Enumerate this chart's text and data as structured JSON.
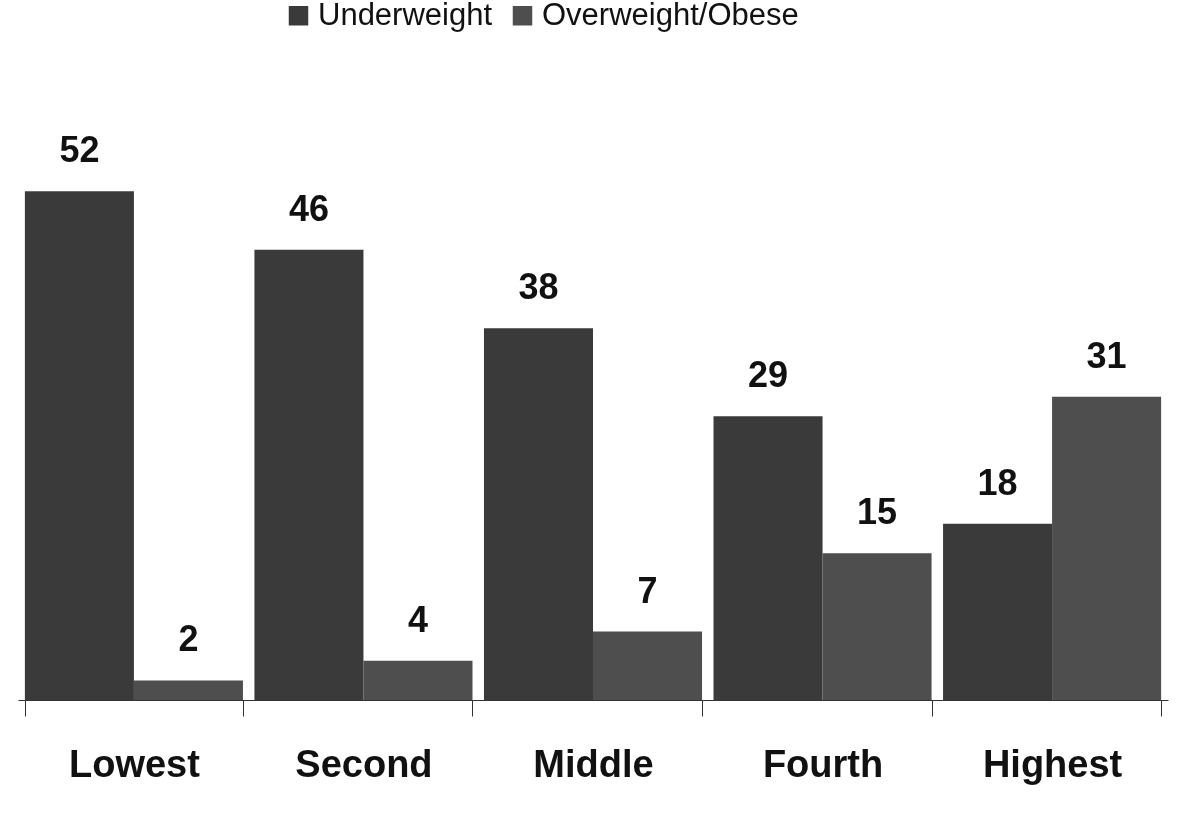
{
  "chart_data": {
    "type": "bar",
    "categories": [
      "Lowest",
      "Second",
      "Middle",
      "Fourth",
      "Highest"
    ],
    "series": [
      {
        "name": "Underweight",
        "color": "#3a3a3a",
        "values": [
          52,
          46,
          38,
          29,
          18
        ]
      },
      {
        "name": "Overweight/Obese",
        "color": "#4e4e4e",
        "values": [
          2,
          4,
          7,
          15,
          31
        ]
      }
    ],
    "data_labels": true,
    "legend": "top",
    "grid": false
  }
}
